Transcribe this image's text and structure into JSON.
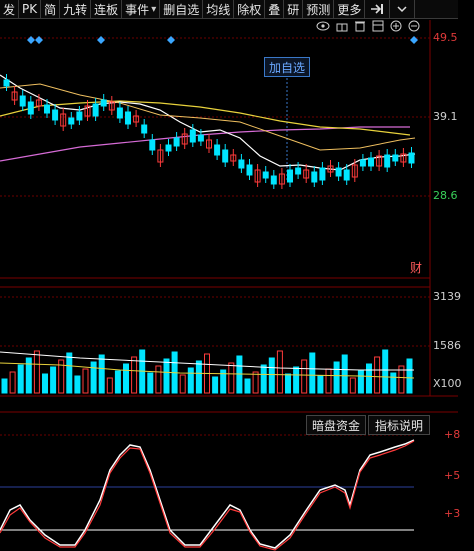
{
  "toolbar": {
    "items": [
      "发",
      "PK",
      "简",
      "九转",
      "连板",
      "事件",
      "删自选",
      "均线",
      "除权",
      "叠",
      "研",
      "预测",
      "更多"
    ],
    "dropdown_index": 5
  },
  "main_chart": {
    "price_labels": {
      "top": "49.5",
      "mid": "39.1",
      "low": "28.6"
    },
    "badge": "财",
    "add_watchlist": "加自选",
    "colors": {
      "up": "#ff3b3b",
      "down": "#00e5ff",
      "ma_short": "#ffffff",
      "ma_mid": "#e8d23c",
      "ma_long": "#d66bd6"
    }
  },
  "volume_chart": {
    "labels": {
      "top": "3139",
      "mid": "1586",
      "unit": "X100"
    }
  },
  "indicator_panel": {
    "buttons": {
      "fund": "暗盘资金",
      "help": "指标说明"
    },
    "scale": {
      "top": "+8",
      "mid": "+5",
      "low": "+3"
    }
  }
}
